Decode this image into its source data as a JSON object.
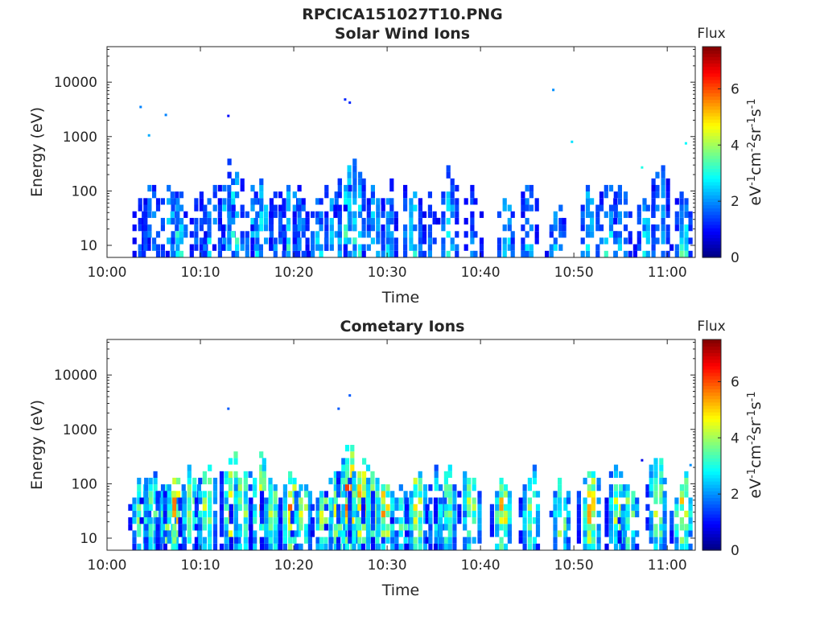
{
  "figure": {
    "title": "RPCICA151027T10.PNG"
  },
  "colors": {
    "jet": [
      "#00007f",
      "#0000ff",
      "#007fff",
      "#00ffff",
      "#7fff7f",
      "#ffff00",
      "#ff7f00",
      "#ff0000",
      "#7f0000"
    ]
  },
  "chart_data": [
    {
      "type": "heatmap",
      "title": "Solar Wind Ions",
      "xlabel": "Time",
      "ylabel": "Energy (eV)",
      "x_ticks": [
        "10:00",
        "10:10",
        "10:20",
        "10:30",
        "10:40",
        "10:50",
        "11:00"
      ],
      "x_range": [
        "10:00",
        "11:03"
      ],
      "y_scale": "log",
      "y_ticks": [
        "10",
        "100",
        "1000",
        "10000"
      ],
      "y_range": [
        6,
        45000
      ],
      "colorbar": {
        "label": "Flux",
        "units": "eV",
        "unit_parts": [
          "-1",
          "cm",
          "-2",
          "sr",
          "-1",
          "s",
          "-1"
        ],
        "ticks": [
          "0",
          "2",
          "4",
          "6"
        ],
        "range": [
          0,
          7.5
        ],
        "colormap": "jet"
      },
      "bursts": [
        {
          "time": "10:03.5",
          "emax": 120,
          "peak": 2.0
        },
        {
          "time": "10:04.5",
          "emax": 250,
          "peak": 3.2
        },
        {
          "time": "10:06.5",
          "emax": 200,
          "peak": 3.5
        },
        {
          "time": "10:07.5",
          "emax": 160,
          "peak": 3.8
        },
        {
          "time": "10:09.5",
          "emax": 150,
          "peak": 2.2
        },
        {
          "time": "10:11.0",
          "emax": 180,
          "peak": 3.3
        },
        {
          "time": "10:12.5",
          "emax": 500,
          "peak": 3.6
        },
        {
          "time": "10:13.5",
          "emax": 700,
          "peak": 4.0
        },
        {
          "time": "10:15.5",
          "emax": 220,
          "peak": 3.4
        },
        {
          "time": "10:16.5",
          "emax": 250,
          "peak": 3.9
        },
        {
          "time": "10:18.0",
          "emax": 120,
          "peak": 2.6
        },
        {
          "time": "10:19.5",
          "emax": 250,
          "peak": 3.8
        },
        {
          "time": "10:20.5",
          "emax": 150,
          "peak": 2.8
        },
        {
          "time": "10:22.5",
          "emax": 90,
          "peak": 3.2
        },
        {
          "time": "10:24.0",
          "emax": 350,
          "peak": 3.4
        },
        {
          "time": "10:25.5",
          "emax": 700,
          "peak": 4.3
        },
        {
          "time": "10:26.5",
          "emax": 500,
          "peak": 4.2
        },
        {
          "time": "10:28.5",
          "emax": 150,
          "peak": 3.6
        },
        {
          "time": "10:30.0",
          "emax": 250,
          "peak": 3.0
        },
        {
          "time": "10:32.5",
          "emax": 200,
          "peak": 3.9
        },
        {
          "time": "10:34.5",
          "emax": 120,
          "peak": 2.4
        },
        {
          "time": "10:36.5",
          "emax": 400,
          "peak": 3.6
        },
        {
          "time": "10:39.0",
          "emax": 170,
          "peak": 2.4
        },
        {
          "time": "10:42.5",
          "emax": 130,
          "peak": 3.6
        },
        {
          "time": "10:45.0",
          "emax": 200,
          "peak": 3.0
        },
        {
          "time": "10:48.0",
          "emax": 60,
          "peak": 3.4
        },
        {
          "time": "10:51.5",
          "emax": 200,
          "peak": 3.8
        },
        {
          "time": "10:53.5",
          "emax": 200,
          "peak": 3.7
        },
        {
          "time": "10:55.0",
          "emax": 220,
          "peak": 3.2
        },
        {
          "time": "10:57.5",
          "emax": 120,
          "peak": 3.5
        },
        {
          "time": "10:59.0",
          "emax": 600,
          "peak": 3.2
        },
        {
          "time": "11:01.5",
          "emax": 120,
          "peak": 3.8
        }
      ],
      "isolated_points": [
        {
          "time": "10:03.6",
          "energy": 3500,
          "flux": 1.9
        },
        {
          "time": "10:04.5",
          "energy": 1050,
          "flux": 2.2
        },
        {
          "time": "10:06.3",
          "energy": 2500,
          "flux": 1.9
        },
        {
          "time": "10:13.0",
          "energy": 2400,
          "flux": 1.0
        },
        {
          "time": "10:25.5",
          "energy": 4800,
          "flux": 1.2
        },
        {
          "time": "10:26.0",
          "energy": 4200,
          "flux": 1.2
        },
        {
          "time": "10:47.8",
          "energy": 7200,
          "flux": 2.0
        },
        {
          "time": "10:49.8",
          "energy": 800,
          "flux": 2.6
        },
        {
          "time": "10:57.3",
          "energy": 270,
          "flux": 3.0
        },
        {
          "time": "11:02.0",
          "energy": 750,
          "flux": 2.8
        }
      ]
    },
    {
      "type": "heatmap",
      "title": "Cometary Ions",
      "xlabel": "Time",
      "ylabel": "Energy (eV)",
      "x_ticks": [
        "10:00",
        "10:10",
        "10:20",
        "10:30",
        "10:40",
        "10:50",
        "11:00"
      ],
      "x_range": [
        "10:00",
        "11:03"
      ],
      "y_scale": "log",
      "y_ticks": [
        "10",
        "100",
        "1000",
        "10000"
      ],
      "y_range": [
        6,
        45000
      ],
      "colorbar": {
        "label": "Flux",
        "units": "eV",
        "unit_parts": [
          "-1",
          "cm",
          "-2",
          "sr",
          "-1",
          "s",
          "-1"
        ],
        "ticks": [
          "0",
          "2",
          "4",
          "6"
        ],
        "range": [
          0,
          7.5
        ],
        "colormap": "jet"
      },
      "bursts": [
        {
          "time": "10:03.5",
          "emax": 180,
          "peak": 4.6
        },
        {
          "time": "10:04.7",
          "emax": 250,
          "peak": 4.4
        },
        {
          "time": "10:06.5",
          "emax": 250,
          "peak": 5.8
        },
        {
          "time": "10:07.2",
          "emax": 300,
          "peak": 6.6
        },
        {
          "time": "10:08.8",
          "emax": 300,
          "peak": 5.0
        },
        {
          "time": "10:10.5",
          "emax": 400,
          "peak": 5.2
        },
        {
          "time": "10:13.2",
          "emax": 700,
          "peak": 6.2
        },
        {
          "time": "10:14.3",
          "emax": 400,
          "peak": 5.0
        },
        {
          "time": "10:16.4",
          "emax": 400,
          "peak": 6.0
        },
        {
          "time": "10:17.5",
          "emax": 200,
          "peak": 5.2
        },
        {
          "time": "10:19.5",
          "emax": 300,
          "peak": 6.5
        },
        {
          "time": "10:20.8",
          "emax": 200,
          "peak": 5.0
        },
        {
          "time": "10:23.0",
          "emax": 120,
          "peak": 5.6
        },
        {
          "time": "10:24.5",
          "emax": 300,
          "peak": 5.2
        },
        {
          "time": "10:25.8",
          "emax": 800,
          "peak": 7.0
        },
        {
          "time": "10:27.0",
          "emax": 600,
          "peak": 6.6
        },
        {
          "time": "10:28.5",
          "emax": 300,
          "peak": 5.2
        },
        {
          "time": "10:29.5",
          "emax": 200,
          "peak": 6.5
        },
        {
          "time": "10:31.5",
          "emax": 150,
          "peak": 4.4
        },
        {
          "time": "10:33.0",
          "emax": 300,
          "peak": 6.0
        },
        {
          "time": "10:35.2",
          "emax": 250,
          "peak": 4.4
        },
        {
          "time": "10:36.2",
          "emax": 300,
          "peak": 4.8
        },
        {
          "time": "10:38.8",
          "emax": 300,
          "peak": 5.0
        },
        {
          "time": "10:42.2",
          "emax": 250,
          "peak": 6.2
        },
        {
          "time": "10:45.2",
          "emax": 300,
          "peak": 5.2
        },
        {
          "time": "10:48.5",
          "emax": 150,
          "peak": 5.2
        },
        {
          "time": "10:51.6",
          "emax": 300,
          "peak": 6.5
        },
        {
          "time": "10:54.5",
          "emax": 300,
          "peak": 5.2
        },
        {
          "time": "10:55.8",
          "emax": 150,
          "peak": 5.0
        },
        {
          "time": "10:58.8",
          "emax": 500,
          "peak": 5.2
        },
        {
          "time": "11:01.5",
          "emax": 200,
          "peak": 6.2
        }
      ],
      "isolated_points": [
        {
          "time": "10:13.0",
          "energy": 2400,
          "flux": 1.6
        },
        {
          "time": "10:24.8",
          "energy": 2400,
          "flux": 1.6
        },
        {
          "time": "10:26.0",
          "energy": 4200,
          "flux": 1.6
        },
        {
          "time": "10:57.3",
          "energy": 270,
          "flux": 0.8
        },
        {
          "time": "11:02.5",
          "energy": 220,
          "flux": 2.0
        }
      ]
    }
  ]
}
